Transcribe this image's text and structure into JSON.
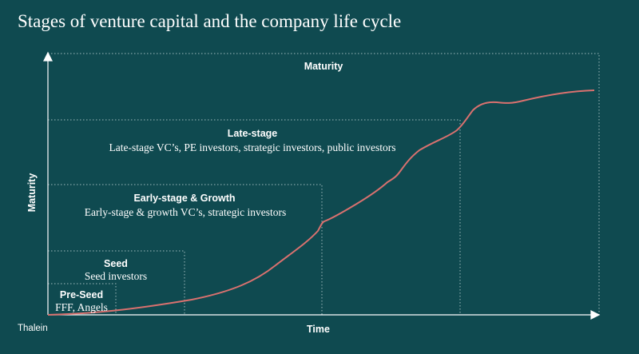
{
  "title": "Stages of venture capital and the company life cycle",
  "axes": {
    "x_label": "Time",
    "y_label": "Maturity"
  },
  "stages": [
    {
      "title": "Pre-Seed",
      "subtitle": "FFF, Angels"
    },
    {
      "title": "Seed",
      "subtitle": "Seed investors"
    },
    {
      "title": "Early-stage & Growth",
      "subtitle": "Early-stage & growth VC’s, strategic investors"
    },
    {
      "title": "Late-stage",
      "subtitle": "Late-stage VC’s, PE investors, strategic investors, public investors"
    },
    {
      "title": "Maturity",
      "subtitle": ""
    }
  ],
  "brand": "Thalein",
  "colors": {
    "background": "#0f4a50",
    "curve": "#d9716f",
    "text": "#ffffff",
    "guides": "#b9cfd0"
  }
}
